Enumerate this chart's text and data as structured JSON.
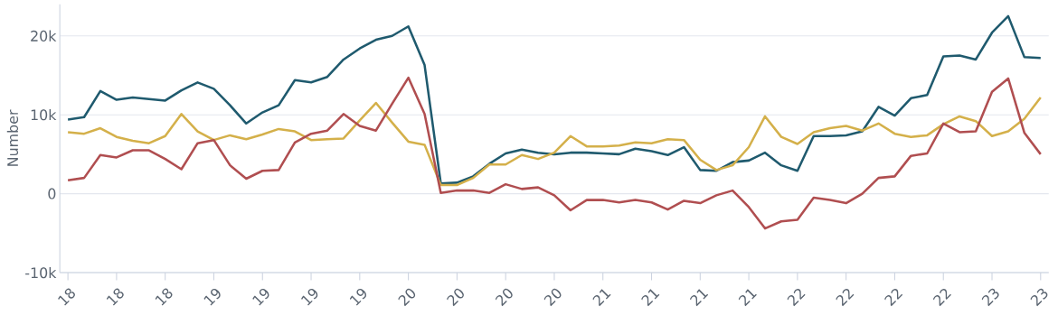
{
  "chart_data": {
    "type": "line",
    "ylabel": "Number",
    "x": [
      "2018-04",
      "2018-05",
      "2018-06",
      "2018-07",
      "2018-08",
      "2018-09",
      "2018-10",
      "2018-11",
      "2018-12",
      "2019-01",
      "2019-02",
      "2019-03",
      "2019-04",
      "2019-05",
      "2019-06",
      "2019-07",
      "2019-08",
      "2019-09",
      "2019-10",
      "2019-11",
      "2019-12",
      "2020-01",
      "2020-02",
      "2020-03",
      "2020-04",
      "2020-05",
      "2020-06",
      "2020-07",
      "2020-08",
      "2020-09",
      "2020-10",
      "2020-11",
      "2020-12",
      "2021-01",
      "2021-02",
      "2021-03",
      "2021-04",
      "2021-05",
      "2021-06",
      "2021-07",
      "2021-08",
      "2021-09",
      "2021-10",
      "2021-11",
      "2021-12",
      "2022-01",
      "2022-02",
      "2022-03",
      "2022-04",
      "2022-05",
      "2022-06",
      "2022-07",
      "2022-08",
      "2022-09",
      "2022-10",
      "2022-11",
      "2022-12",
      "2023-01",
      "2023-02",
      "2023-03",
      "2023-04"
    ],
    "series": [
      {
        "color": "#1f5a6e",
        "values": [
          9400,
          9700,
          13000,
          11900,
          12200,
          12000,
          11800,
          13100,
          14100,
          13300,
          11200,
          8900,
          10300,
          11200,
          14400,
          14100,
          14800,
          17000,
          18400,
          19500,
          20000,
          21200,
          16300,
          1300,
          1400,
          2200,
          3800,
          5100,
          5600,
          5200,
          5000,
          5200,
          5200,
          5100,
          5000,
          5700,
          5400,
          4900,
          5900,
          3000,
          2900,
          4000,
          4200,
          5200,
          3600,
          2900,
          7300,
          7300,
          7400,
          7900,
          11000,
          9900,
          12100,
          12500,
          17400,
          17500,
          17000,
          20400,
          22500,
          17300,
          17200
        ]
      },
      {
        "color": "#d4b04a",
        "values": [
          7800,
          7600,
          8300,
          7200,
          6700,
          6400,
          7300,
          10100,
          7900,
          6800,
          7400,
          6900,
          7500,
          8200,
          7900,
          6800,
          6900,
          7000,
          9300,
          11500,
          9000,
          6600,
          6200,
          1100,
          1100,
          2000,
          3700,
          3700,
          4900,
          4400,
          5200,
          7300,
          6000,
          6000,
          6100,
          6500,
          6400,
          6900,
          6800,
          4300,
          3000,
          3600,
          5900,
          9800,
          7200,
          6300,
          7800,
          8300,
          8600,
          8000,
          8900,
          7600,
          7200,
          7400,
          8800,
          9800,
          9200,
          7300,
          7900,
          9500,
          12200
        ]
      },
      {
        "color": "#b04e50",
        "values": [
          1700,
          2000,
          4900,
          4600,
          5500,
          5500,
          4400,
          3100,
          6400,
          6800,
          3600,
          1900,
          2900,
          3000,
          6500,
          7600,
          8000,
          10100,
          8600,
          8000,
          11400,
          14700,
          10100,
          100,
          400,
          400,
          100,
          1200,
          600,
          800,
          -200,
          -2100,
          -800,
          -800,
          -1100,
          -800,
          -1100,
          -2000,
          -900,
          -1200,
          -200,
          400,
          -1700,
          -4400,
          -3500,
          -3300,
          -500,
          -800,
          -1200,
          0,
          2000,
          2200,
          4800,
          5100,
          8900,
          7800,
          7900,
          12900,
          14600,
          7700,
          5000
        ]
      }
    ],
    "xlim": [
      "2018-03-16",
      "2023-04-16"
    ],
    "xticks": [
      {
        "value": "2018-04",
        "label": "18"
      },
      {
        "value": "2018-07",
        "label": "18"
      },
      {
        "value": "2018-10",
        "label": "18"
      },
      {
        "value": "2019-01",
        "label": "19"
      },
      {
        "value": "2019-04",
        "label": "19"
      },
      {
        "value": "2019-07",
        "label": "19"
      },
      {
        "value": "2019-10",
        "label": "19"
      },
      {
        "value": "2020-01",
        "label": "20"
      },
      {
        "value": "2020-04",
        "label": "20"
      },
      {
        "value": "2020-07",
        "label": "20"
      },
      {
        "value": "2020-10",
        "label": "20"
      },
      {
        "value": "2021-01",
        "label": "21"
      },
      {
        "value": "2021-04",
        "label": "21"
      },
      {
        "value": "2021-07",
        "label": "21"
      },
      {
        "value": "2021-10",
        "label": "21"
      },
      {
        "value": "2022-01",
        "label": "22"
      },
      {
        "value": "2022-04",
        "label": "22"
      },
      {
        "value": "2022-07",
        "label": "22"
      },
      {
        "value": "2022-10",
        "label": "22"
      },
      {
        "value": "2023-01",
        "label": "23"
      },
      {
        "value": "2023-04",
        "label": "23"
      }
    ],
    "ylim": [
      -10000,
      24000
    ],
    "yticks": [
      {
        "value": -10000,
        "label": "-10k"
      },
      {
        "value": 0,
        "label": "0"
      },
      {
        "value": 10000,
        "label": "10k"
      },
      {
        "value": 20000,
        "label": "20k"
      }
    ],
    "grid": "y",
    "line_style": "solid"
  }
}
